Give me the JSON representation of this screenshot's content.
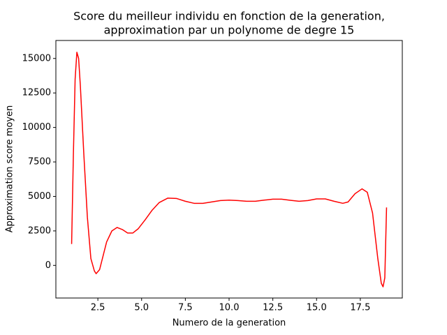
{
  "chart_data": {
    "type": "line",
    "title": [
      "Score du meilleur individu en fonction de la generation,",
      "approximation par un polynome de degre 15"
    ],
    "xlabel": "Numero de la generation",
    "ylabel": "Approximation score moyen",
    "x": [
      1.0,
      1.1,
      1.2,
      1.3,
      1.4,
      1.5,
      1.7,
      1.9,
      2.1,
      2.3,
      2.4,
      2.6,
      2.8,
      3.0,
      3.3,
      3.6,
      3.9,
      4.2,
      4.5,
      4.8,
      5.2,
      5.6,
      6.0,
      6.5,
      7.0,
      7.5,
      8.0,
      8.5,
      9.0,
      9.5,
      10.0,
      10.5,
      11.0,
      11.5,
      12.0,
      12.5,
      13.0,
      13.5,
      14.0,
      14.5,
      15.0,
      15.5,
      16.0,
      16.5,
      16.8,
      17.2,
      17.6,
      17.9,
      18.2,
      18.5,
      18.7,
      18.8,
      18.9,
      19.0
    ],
    "series": [
      {
        "color": "#ff0000",
        "values": [
          1550,
          8000,
          13500,
          15450,
          15000,
          13000,
          8000,
          3500,
          500,
          -400,
          -600,
          -300,
          700,
          1700,
          2500,
          2750,
          2600,
          2350,
          2350,
          2650,
          3300,
          4000,
          4550,
          4880,
          4850,
          4650,
          4500,
          4500,
          4600,
          4700,
          4730,
          4700,
          4650,
          4650,
          4730,
          4800,
          4800,
          4720,
          4650,
          4700,
          4820,
          4820,
          4650,
          4500,
          4600,
          5200,
          5550,
          5300,
          3800,
          500,
          -1300,
          -1550,
          -900,
          4200
        ]
      }
    ],
    "xlim": [
      0.1,
      19.9
    ],
    "ylim": [
      -2363,
      16303
    ],
    "xticks": [
      {
        "value": 2.5,
        "label": "2.5"
      },
      {
        "value": 5,
        "label": "5.0"
      },
      {
        "value": 7.5,
        "label": "7.5"
      },
      {
        "value": 10,
        "label": "10.0"
      },
      {
        "value": 12.5,
        "label": "12.5"
      },
      {
        "value": 15,
        "label": "15.0"
      },
      {
        "value": 17.5,
        "label": "17.5"
      }
    ],
    "yticks": [
      0,
      2500,
      5000,
      7500,
      10000,
      12500,
      15000
    ],
    "grid": false
  }
}
